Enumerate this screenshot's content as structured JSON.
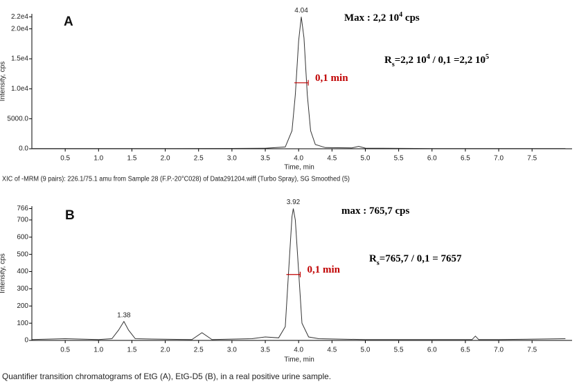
{
  "chart_data": [
    {
      "type": "line",
      "panel": "A",
      "x_label": "Time, min",
      "y_label": "Intensity, cps",
      "caption": "XIC of -MRM (9 pairs): 226.1/75.1 amu from Sample 28 (F.P.-20°C028) of Data291204.wiff (Turbo Spray), SG Smoothed (5)",
      "xlim": [
        0,
        8.1
      ],
      "ylim": [
        0,
        22500
      ],
      "xticks": [
        0.5,
        1.0,
        1.5,
        2.0,
        2.5,
        3.0,
        3.5,
        4.0,
        4.5,
        5.0,
        5.5,
        6.0,
        6.5,
        7.0,
        7.5
      ],
      "yticks": [
        {
          "value": 0,
          "label": "0.0"
        },
        {
          "value": 5000,
          "label": "5000.0"
        },
        {
          "value": 10000,
          "label": "1.0e4"
        },
        {
          "value": 15000,
          "label": "1.5e4"
        },
        {
          "value": 20000,
          "label": "2.0e4"
        },
        {
          "value": 22000,
          "label": "2.2e4"
        }
      ],
      "series": [
        {
          "color": "#333333",
          "x": [
            0,
            1,
            2,
            3,
            3.5,
            3.8,
            3.9,
            3.95,
            4.0,
            4.04,
            4.08,
            4.13,
            4.18,
            4.25,
            4.4,
            4.8,
            4.9,
            5.0,
            6,
            7,
            8
          ],
          "values": [
            50,
            50,
            50,
            60,
            80,
            300,
            3000,
            9000,
            18000,
            22000,
            18500,
            9000,
            3000,
            700,
            200,
            150,
            400,
            100,
            50,
            50,
            50
          ]
        }
      ],
      "peak_labels": [
        {
          "x": 4.04,
          "y": 22000
        }
      ],
      "width_annotation": {
        "text": "0,1 min",
        "color": "#c00000"
      },
      "annotations": [
        {
          "parts": [
            "Max : 2,2 10",
            {
              "sup": "4"
            },
            "  cps"
          ]
        },
        {
          "parts": [
            "R",
            {
              "sub": "s"
            },
            "=2,2 10",
            {
              "sup": "4"
            },
            " / 0,1 =2,2 10",
            {
              "sup": "5"
            }
          ]
        }
      ]
    },
    {
      "type": "line",
      "panel": "B",
      "x_label": "Time, min",
      "y_label": "Intensity, cps",
      "caption": "Quantifier transition chromatograms of EtG (A), EtG-D5 (B), in a real positive urine sample.",
      "xlim": [
        0,
        8.1
      ],
      "ylim": [
        0,
        780
      ],
      "xticks": [
        0.5,
        1.0,
        1.5,
        2.0,
        2.5,
        3.0,
        3.5,
        4.0,
        4.5,
        5.0,
        5.5,
        6.0,
        6.5,
        7.0,
        7.5
      ],
      "yticks": [
        0,
        100,
        200,
        300,
        400,
        500,
        600,
        700,
        766
      ],
      "series": [
        {
          "color": "#333333",
          "x": [
            0,
            0.5,
            1,
            1.2,
            1.3,
            1.38,
            1.45,
            1.55,
            1.8,
            2.4,
            2.55,
            2.7,
            3.3,
            3.5,
            3.7,
            3.8,
            3.85,
            3.9,
            3.92,
            3.95,
            4.0,
            4.05,
            4.15,
            4.3,
            5,
            6,
            6.6,
            6.65,
            6.7,
            7,
            8
          ],
          "values": [
            5,
            10,
            5,
            10,
            60,
            110,
            60,
            10,
            8,
            5,
            45,
            5,
            10,
            20,
            15,
            80,
            400,
            720,
            766,
            700,
            400,
            100,
            20,
            10,
            5,
            5,
            5,
            25,
            5,
            5,
            10
          ]
        }
      ],
      "peak_labels": [
        {
          "x": 1.38,
          "y": 110
        },
        {
          "x": 3.92,
          "y": 766
        }
      ],
      "width_annotation": {
        "text": "0,1 min",
        "color": "#c00000"
      },
      "annotations": [
        {
          "parts": [
            "max : 765,7 cps"
          ]
        },
        {
          "parts": [
            "R",
            {
              "sub": "s"
            },
            "=765,7 / 0,1 = 7657"
          ]
        }
      ]
    }
  ]
}
